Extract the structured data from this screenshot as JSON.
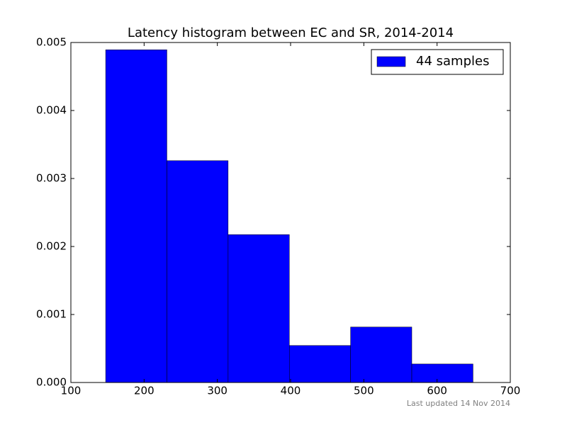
{
  "chart_data": {
    "type": "histogram",
    "title": "Latency histogram between EC and SR, 2014-2014",
    "bins": [
      147.5,
      231.1,
      314.7,
      398.3,
      481.9,
      565.5,
      649.1
    ],
    "series": [
      {
        "name": "44 samples",
        "color": "#0000ff",
        "values": [
          0.004893,
          0.003262,
          0.002175,
          0.000544,
          0.000816,
          0.000272
        ]
      }
    ],
    "xlim": [
      100,
      700
    ],
    "xticks": [
      100,
      200,
      300,
      400,
      500,
      600,
      700
    ],
    "ylim": [
      0,
      0.005
    ],
    "yticks": [
      {
        "value": 0,
        "label": "0.000"
      },
      0.001,
      0.002,
      0.003,
      0.004,
      0.005
    ],
    "legend": "upper right",
    "grid": false,
    "footnote": "Last updated 14 Nov 2014"
  }
}
